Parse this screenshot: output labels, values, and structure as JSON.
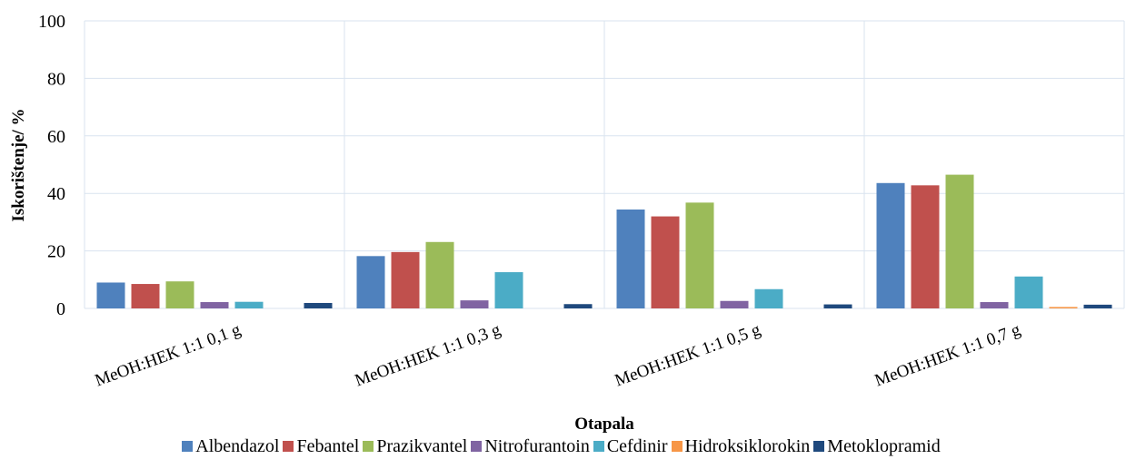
{
  "chart_data": {
    "type": "bar",
    "categories": [
      "MeOH:HEK 1:1 0,1 g",
      "MeOH:HEK 1:1 0,3 g",
      "MeOH:HEK 1:1 0,5 g",
      "MeOH:HEK 1:1 0,7 g"
    ],
    "series": [
      {
        "name": "Albendazol",
        "color": "#4F81BD",
        "values": [
          9.0,
          18.2,
          34.4,
          43.6
        ]
      },
      {
        "name": "Febantel",
        "color": "#C0504D",
        "values": [
          8.5,
          19.6,
          32.0,
          42.8
        ]
      },
      {
        "name": "Prazikvantel",
        "color": "#9BBB59",
        "values": [
          9.4,
          23.1,
          36.8,
          46.5
        ]
      },
      {
        "name": "Nitrofurantoin",
        "color": "#8064A2",
        "values": [
          2.2,
          2.8,
          2.6,
          2.2
        ]
      },
      {
        "name": "Cefdinir",
        "color": "#4BACC6",
        "values": [
          2.3,
          12.6,
          6.7,
          11.1
        ]
      },
      {
        "name": "Hidroksiklorokin",
        "color": "#F79646",
        "values": [
          0.0,
          0.0,
          0.0,
          0.5
        ]
      },
      {
        "name": "Metoklopramid",
        "color": "#1F497D",
        "values": [
          1.9,
          1.5,
          1.4,
          1.3
        ]
      }
    ],
    "xlabel": "Otapala",
    "ylabel": "Iskorištenje/ %",
    "ylim": [
      0,
      100
    ],
    "yticks": [
      "0",
      "20",
      "40",
      "60",
      "80",
      "100"
    ],
    "grid": true,
    "legend_position": "bottom"
  }
}
